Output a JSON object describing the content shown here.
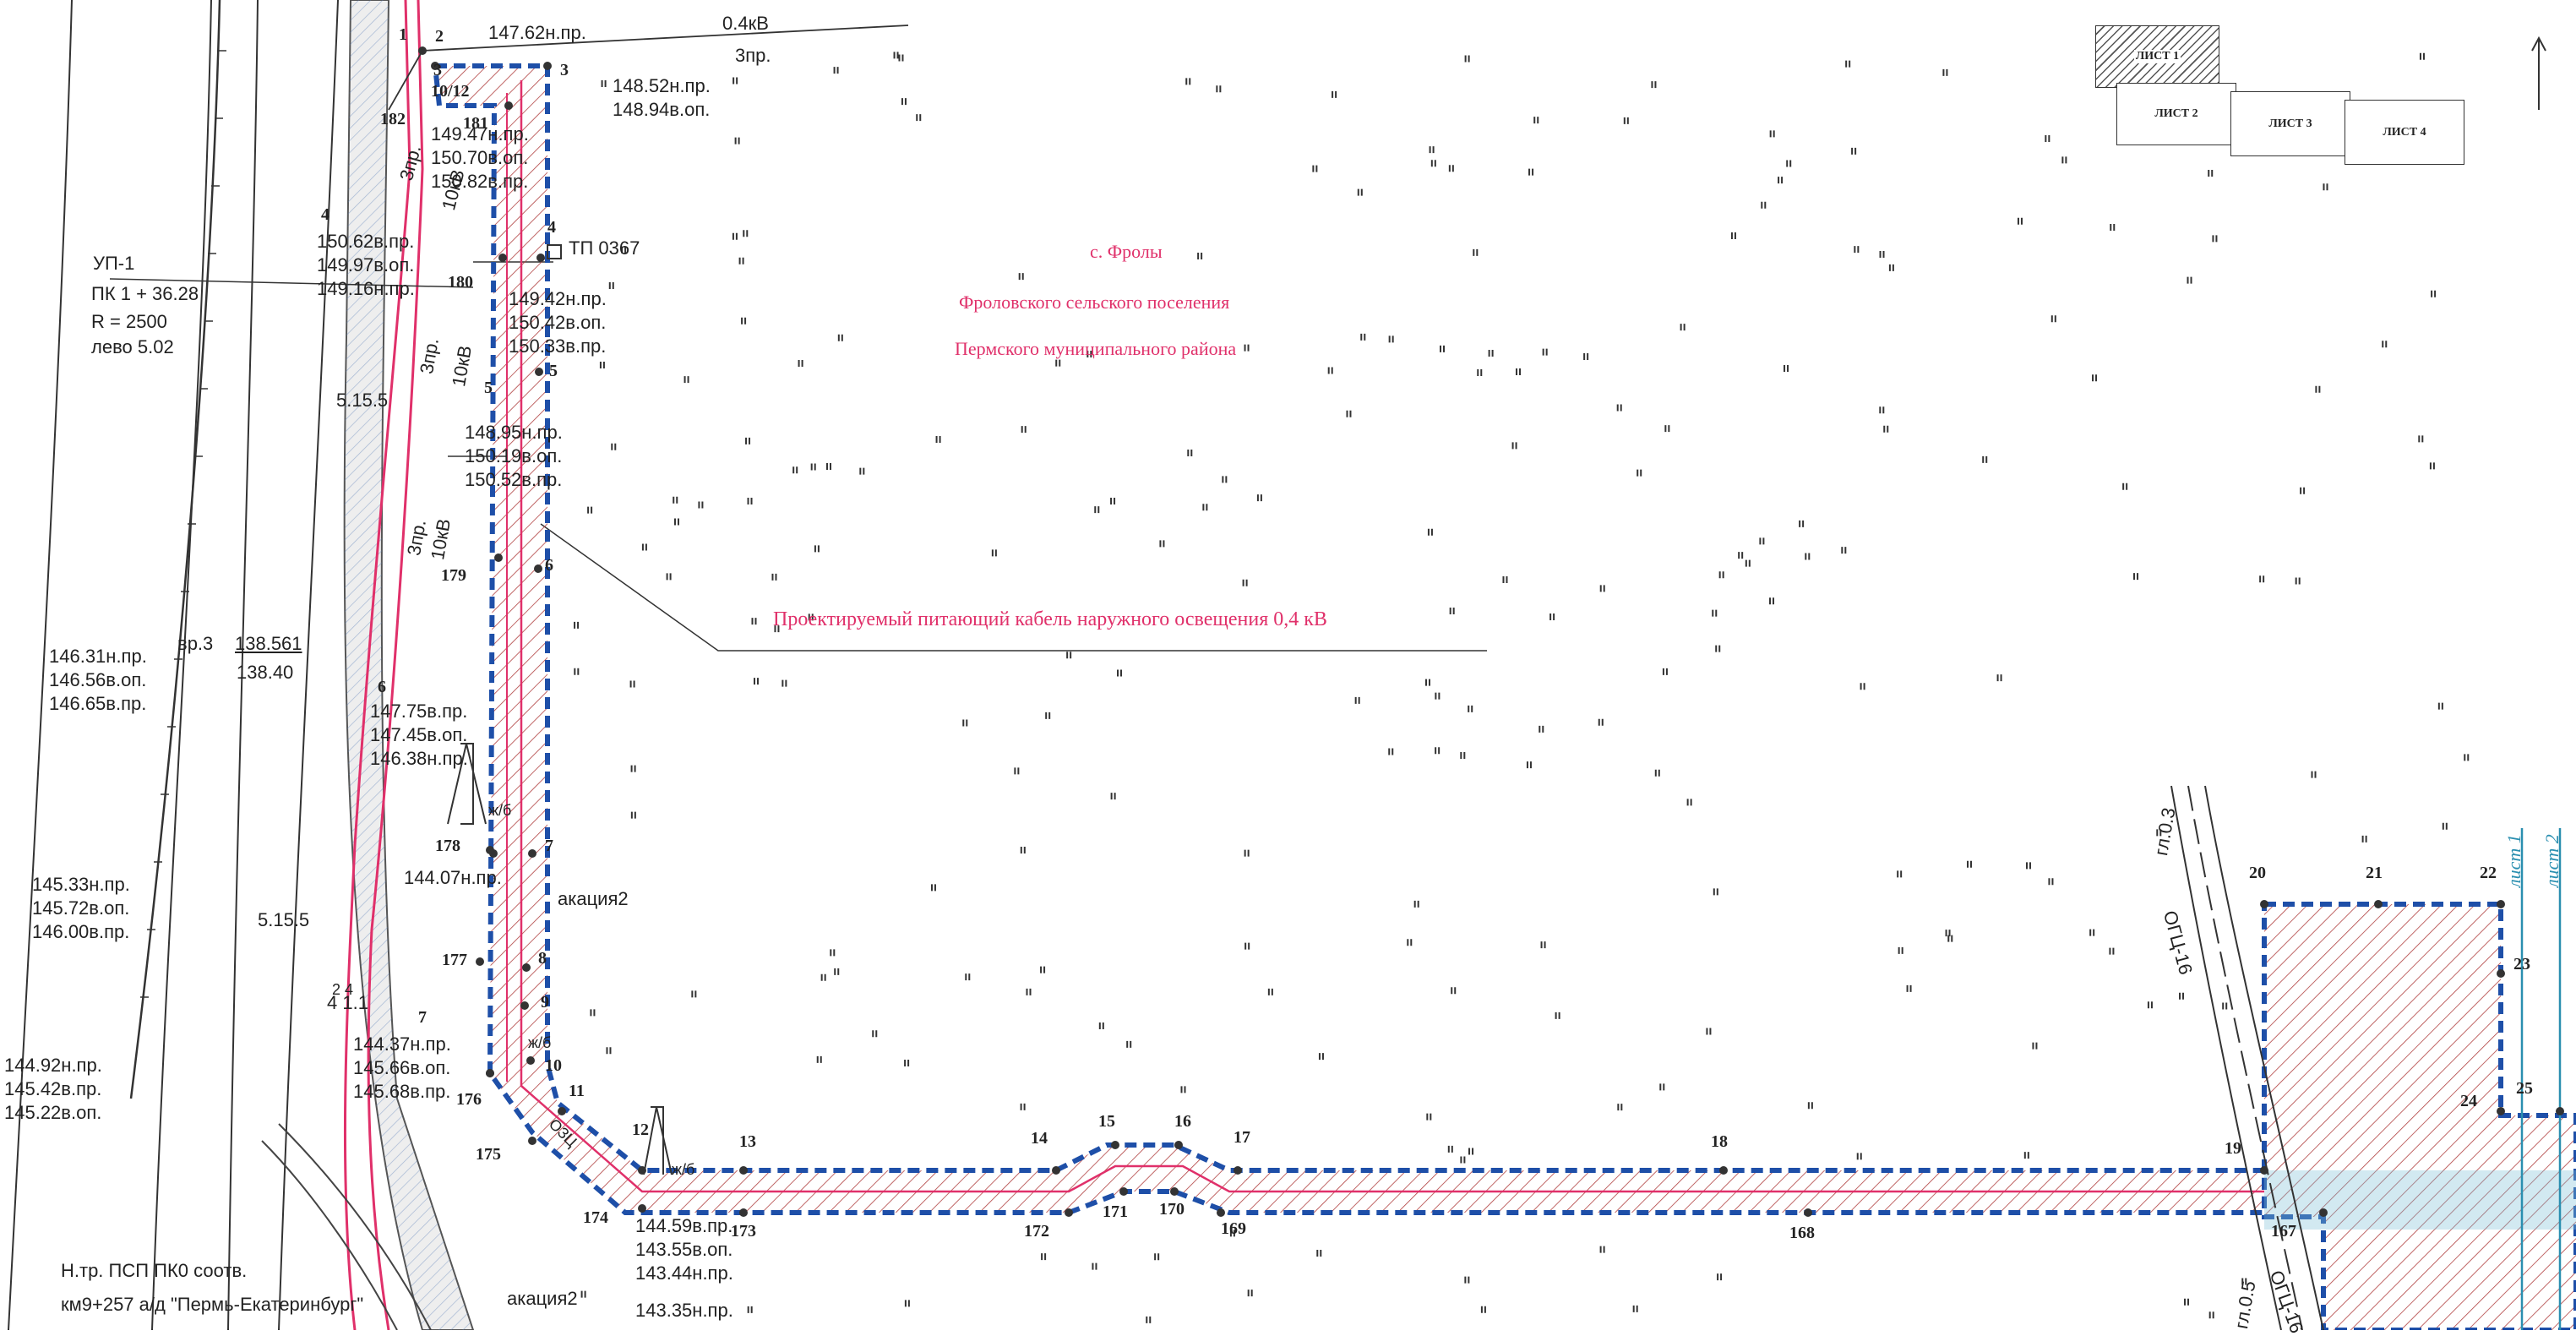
{
  "village": {
    "name": "с. Фролы",
    "settlement": "Фроловского сельского поселения",
    "district": "Пермского муниципального района"
  },
  "cable_label": "Проектируемый питающий кабель наружного освещения 0,4 кВ",
  "tp_label": "ТП 0367",
  "sheets": [
    "ЛИСТ 1",
    "ЛИСТ 2",
    "ЛИСТ 3",
    "ЛИСТ 4"
  ],
  "sheet_lines": [
    "лист 1",
    "лист 2"
  ],
  "curve": {
    "up": "УП-1",
    "pk": "ПК 1 + 36.28",
    "r": "R = 2500",
    "side": "лево 5.02"
  },
  "benchmark": {
    "name": "вр.3",
    "top": "138.561",
    "bottom": "138.40"
  },
  "road_start": {
    "line1": "Н.тр. ПСП ПК0 соотв.",
    "line2": "км9+257 а/д \"Пермь-Екатеринбург\""
  },
  "lines": {
    "kv04_top": "0.4кВ",
    "pr3": "3пр.",
    "kv10": "10кВ",
    "ogts": "ОГЦ-16",
    "gl03": "гл.0.3",
    "gl05": "гл.0.5"
  },
  "misc": {
    "acacia": "акация2",
    "w1": "5.15.5",
    "w2": "5.15.5",
    "w3": "4 1.1",
    "w4": "2 4",
    "zhb": "ж/б",
    "ozc": "ОЗЦ"
  },
  "elevations": [
    {
      "id": "e1",
      "lines": [
        "147.62н.пр."
      ]
    },
    {
      "id": "e2",
      "lines": [
        "148.52н.пр.",
        "148.94в.оп."
      ]
    },
    {
      "id": "e3",
      "lines": [
        "149.47н.пр.",
        "150.70в.оп.",
        "150.82в.пр."
      ]
    },
    {
      "id": "e4",
      "lines": [
        "150.62в.пр.",
        "149.97в.оп.",
        "149.16н.пр."
      ]
    },
    {
      "id": "e5",
      "lines": [
        "149.42н.пр.",
        "150.42в.оп.",
        "150.33в.пр."
      ]
    },
    {
      "id": "e6",
      "lines": [
        "148.95н.пр.",
        "150.19в.оп.",
        "150.52в.пр."
      ]
    },
    {
      "id": "e7",
      "lines": [
        "147.75в.пр.",
        "147.45в.оп.",
        "146.38н.пр."
      ]
    },
    {
      "id": "e8",
      "lines": [
        "146.31н.пр.",
        "146.56в.оп.",
        "146.65в.пр."
      ]
    },
    {
      "id": "e9",
      "lines": [
        "144.07н.пр."
      ]
    },
    {
      "id": "e10",
      "lines": [
        "145.33н.пр.",
        "145.72в.оп.",
        "146.00в.пр."
      ]
    },
    {
      "id": "e11",
      "lines": [
        "144.37н.пр.",
        "145.66в.оп.",
        "145.68в.пр."
      ]
    },
    {
      "id": "e12",
      "lines": [
        "144.92н.пр.",
        "145.42в.пр.",
        "145.22в.оп."
      ]
    },
    {
      "id": "e13",
      "lines": [
        "144.59в.пр.",
        "143.55в.оп.",
        "143.44н.пр."
      ]
    },
    {
      "id": "e14",
      "lines": [
        "143.35н.пр."
      ]
    }
  ],
  "points": [
    "1",
    "2",
    "3",
    "3",
    "4",
    "4",
    "5",
    "5",
    "6",
    "6",
    "7",
    "7",
    "8",
    "9",
    "10",
    "11",
    "12",
    "13",
    "14",
    "15",
    "16",
    "17",
    "18",
    "19",
    "20",
    "21",
    "22",
    "23",
    "24",
    "25",
    "167",
    "168",
    "169",
    "170",
    "171",
    "172",
    "173",
    "174",
    "175",
    "176",
    "177",
    "178",
    "179",
    "180",
    "181",
    "182",
    "10/12"
  ],
  "colors": {
    "boundary": "#1e4fa8",
    "cable": "#e0306a",
    "hatch": "#b04040",
    "teal": "#2a8fb0"
  }
}
